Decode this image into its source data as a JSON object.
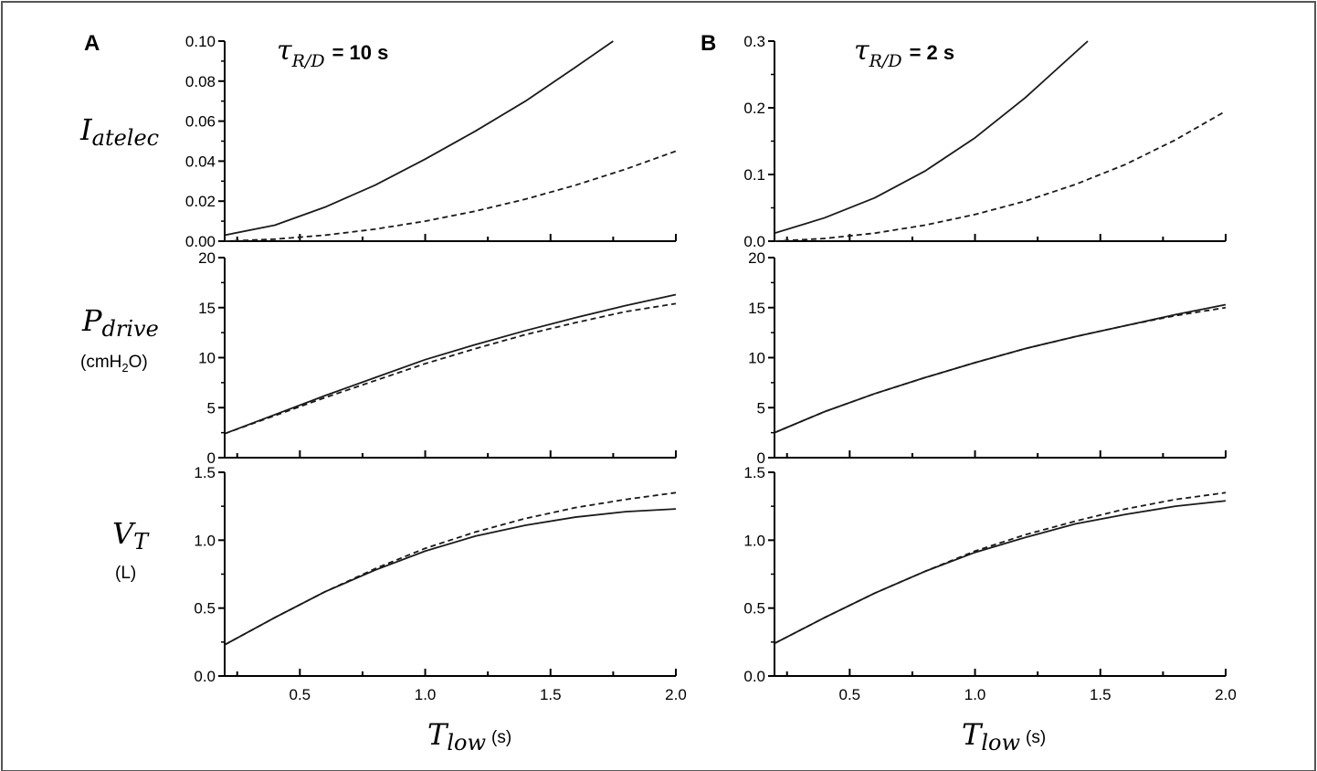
{
  "figure": {
    "panel_a": {
      "letter": "A",
      "tau_symbol": "τ",
      "tau_subscript": "R/D",
      "tau_value": "= 10 s"
    },
    "panel_b": {
      "letter": "B",
      "tau_symbol": "τ",
      "tau_subscript": "R/D",
      "tau_value": "= 2 s"
    },
    "row_labels": {
      "iatelec": {
        "main": "I",
        "sub": "atelec"
      },
      "pdrive": {
        "main": "P",
        "sub": "drive",
        "unit_prefix": "(cmH",
        "unit_sub": "2",
        "unit_suffix": "O)"
      },
      "vt": {
        "main": "V",
        "sub": "T",
        "unit": "(L)"
      }
    },
    "x_axis_label": {
      "main": "T",
      "sub": "low",
      "unit": "(s)"
    }
  },
  "chart_data": [
    {
      "type": "line",
      "panel": "A",
      "row": "iatelec",
      "xlim": [
        0.2,
        2.0
      ],
      "ylim": [
        0,
        0.1
      ],
      "yticks": [
        "0.00",
        "0.02",
        "0.04",
        "0.06",
        "0.08",
        "0.10"
      ],
      "xticks": [
        "0.5",
        "1.0",
        "1.5",
        "2.0"
      ],
      "series": [
        {
          "style": "solid",
          "x": [
            0.2,
            0.4,
            0.6,
            0.8,
            1.0,
            1.2,
            1.4,
            1.6,
            1.75
          ],
          "y": [
            0.003,
            0.008,
            0.017,
            0.028,
            0.041,
            0.055,
            0.07,
            0.087,
            0.1
          ]
        },
        {
          "style": "dashed",
          "x": [
            0.2,
            0.4,
            0.6,
            0.8,
            1.0,
            1.2,
            1.4,
            1.6,
            1.8,
            2.0
          ],
          "y": [
            0.0,
            0.001,
            0.003,
            0.006,
            0.01,
            0.015,
            0.021,
            0.028,
            0.036,
            0.045
          ]
        }
      ]
    },
    {
      "type": "line",
      "panel": "A",
      "row": "pdrive",
      "xlim": [
        0.2,
        2.0
      ],
      "ylim": [
        0,
        20
      ],
      "yticks": [
        "0",
        "5",
        "10",
        "15",
        "20"
      ],
      "xticks": [
        "0.5",
        "1.0",
        "1.5",
        "2.0"
      ],
      "series": [
        {
          "style": "solid",
          "x": [
            0.2,
            0.4,
            0.6,
            0.8,
            1.0,
            1.2,
            1.4,
            1.6,
            1.8,
            2.0
          ],
          "y": [
            2.4,
            4.3,
            6.2,
            8.0,
            9.8,
            11.3,
            12.7,
            14.0,
            15.2,
            16.3
          ]
        },
        {
          "style": "dashed",
          "x": [
            0.2,
            0.4,
            0.6,
            0.8,
            1.0,
            1.2,
            1.4,
            1.6,
            1.8,
            2.0
          ],
          "y": [
            2.4,
            4.2,
            6.0,
            7.7,
            9.4,
            10.9,
            12.3,
            13.5,
            14.6,
            15.4
          ]
        }
      ]
    },
    {
      "type": "line",
      "panel": "A",
      "row": "vt",
      "xlim": [
        0.2,
        2.0
      ],
      "ylim": [
        0,
        1.5
      ],
      "yticks": [
        "0.0",
        "0.5",
        "1.0",
        "1.5"
      ],
      "xticks": [
        "0.5",
        "1.0",
        "1.5",
        "2.0"
      ],
      "series": [
        {
          "style": "solid",
          "x": [
            0.2,
            0.4,
            0.6,
            0.8,
            1.0,
            1.2,
            1.4,
            1.6,
            1.8,
            2.0
          ],
          "y": [
            0.23,
            0.43,
            0.62,
            0.78,
            0.92,
            1.03,
            1.11,
            1.17,
            1.21,
            1.23
          ]
        },
        {
          "style": "dashed",
          "x": [
            0.2,
            0.4,
            0.6,
            0.8,
            1.0,
            1.2,
            1.4,
            1.6,
            1.8,
            2.0
          ],
          "y": [
            0.23,
            0.43,
            0.62,
            0.79,
            0.94,
            1.06,
            1.16,
            1.24,
            1.3,
            1.35
          ]
        }
      ]
    },
    {
      "type": "line",
      "panel": "B",
      "row": "iatelec",
      "xlim": [
        0.2,
        2.0
      ],
      "ylim": [
        0,
        0.3
      ],
      "yticks": [
        "0.0",
        "0.1",
        "0.2",
        "0.3"
      ],
      "xticks": [
        "0.5",
        "1.0",
        "1.5",
        "2.0"
      ],
      "series": [
        {
          "style": "solid",
          "x": [
            0.2,
            0.4,
            0.6,
            0.8,
            1.0,
            1.2,
            1.45
          ],
          "y": [
            0.012,
            0.035,
            0.065,
            0.105,
            0.155,
            0.215,
            0.3
          ]
        },
        {
          "style": "dashed",
          "x": [
            0.2,
            0.4,
            0.6,
            0.8,
            1.0,
            1.2,
            1.4,
            1.6,
            1.8,
            2.0
          ],
          "y": [
            0.0,
            0.004,
            0.012,
            0.024,
            0.04,
            0.06,
            0.085,
            0.115,
            0.152,
            0.195
          ]
        }
      ]
    },
    {
      "type": "line",
      "panel": "B",
      "row": "pdrive",
      "xlim": [
        0.2,
        2.0
      ],
      "ylim": [
        0,
        20
      ],
      "yticks": [
        "0",
        "5",
        "10",
        "15",
        "20"
      ],
      "xticks": [
        "0.5",
        "1.0",
        "1.5",
        "2.0"
      ],
      "series": [
        {
          "style": "solid",
          "x": [
            0.2,
            0.4,
            0.6,
            0.8,
            1.0,
            1.2,
            1.4,
            1.6,
            1.8,
            2.0
          ],
          "y": [
            2.5,
            4.6,
            6.4,
            8.0,
            9.5,
            10.9,
            12.1,
            13.2,
            14.3,
            15.3
          ]
        },
        {
          "style": "dashed",
          "x": [
            0.2,
            0.4,
            0.6,
            0.8,
            1.0,
            1.2,
            1.4,
            1.6,
            1.8,
            2.0
          ],
          "y": [
            2.5,
            4.6,
            6.4,
            8.0,
            9.5,
            10.9,
            12.1,
            13.2,
            14.2,
            15.0
          ]
        }
      ]
    },
    {
      "type": "line",
      "panel": "B",
      "row": "vt",
      "xlim": [
        0.2,
        2.0
      ],
      "ylim": [
        0,
        1.5
      ],
      "yticks": [
        "0.0",
        "0.5",
        "1.0",
        "1.5"
      ],
      "xticks": [
        "0.5",
        "1.0",
        "1.5",
        "2.0"
      ],
      "series": [
        {
          "style": "solid",
          "x": [
            0.2,
            0.4,
            0.6,
            0.8,
            1.0,
            1.2,
            1.4,
            1.6,
            1.8,
            2.0
          ],
          "y": [
            0.24,
            0.43,
            0.61,
            0.77,
            0.91,
            1.02,
            1.12,
            1.19,
            1.25,
            1.29
          ]
        },
        {
          "style": "dashed",
          "x": [
            0.2,
            0.4,
            0.6,
            0.8,
            1.0,
            1.2,
            1.4,
            1.6,
            1.8,
            2.0
          ],
          "y": [
            0.24,
            0.43,
            0.61,
            0.77,
            0.92,
            1.04,
            1.14,
            1.23,
            1.3,
            1.35
          ]
        }
      ]
    }
  ]
}
